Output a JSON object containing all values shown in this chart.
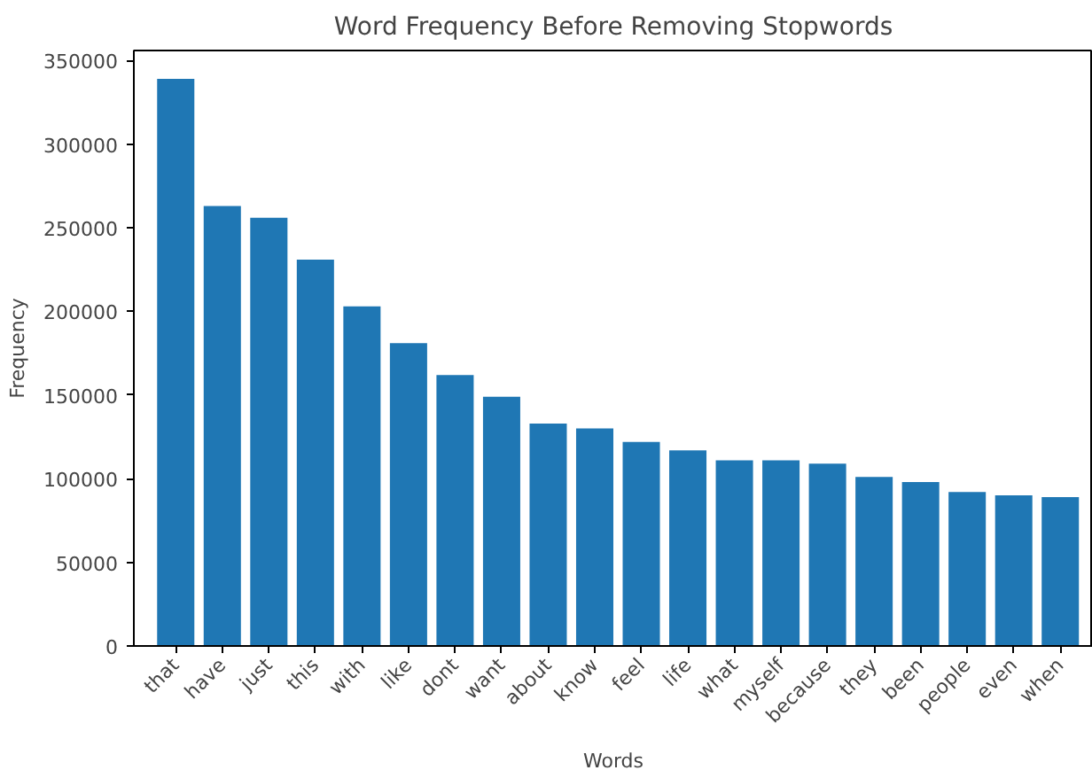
{
  "chart_data": {
    "type": "bar",
    "title": "Word Frequency Before Removing Stopwords",
    "xlabel": "Words",
    "ylabel": "Frequency",
    "categories": [
      "that",
      "have",
      "just",
      "this",
      "with",
      "like",
      "dont",
      "want",
      "about",
      "know",
      "feel",
      "life",
      "what",
      "myself",
      "because",
      "they",
      "been",
      "people",
      "even",
      "when"
    ],
    "values": [
      339000,
      263000,
      256000,
      231000,
      203000,
      181000,
      162000,
      149000,
      133000,
      130000,
      122000,
      117000,
      111000,
      111000,
      109000,
      101000,
      98000,
      92000,
      90000,
      89000
    ],
    "color": "#1f77b4",
    "ylim": [
      0,
      356000
    ],
    "yticks": [
      0,
      50000,
      100000,
      150000,
      200000,
      250000,
      300000,
      350000
    ],
    "grid": false
  }
}
